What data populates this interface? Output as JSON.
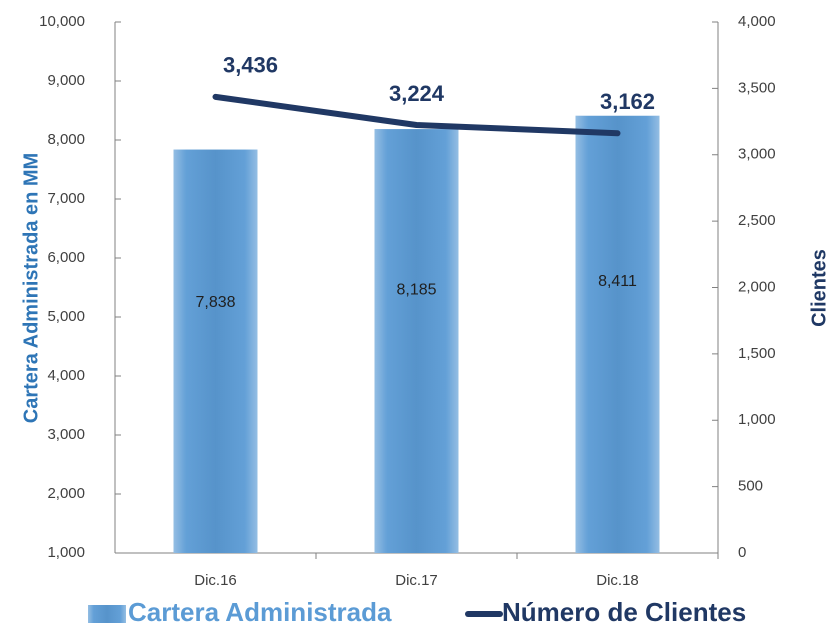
{
  "chart_data": {
    "type": "bar_line",
    "y_label": "Cartera Administrada en MM",
    "y2_label": "Clientes",
    "categories": [
      "Dic.16",
      "Dic.17",
      "Dic.18"
    ],
    "series": [
      {
        "name": "Cartera Administrada",
        "color": "#5b9bd5",
        "values": [
          7838,
          8185,
          8411
        ],
        "value_labels": [
          "7,838",
          "8,185",
          "8,411"
        ]
      },
      {
        "name": "Número de Clientes",
        "color": "#203864",
        "axis": "y2",
        "values": [
          3436,
          3224,
          3162
        ],
        "value_labels": [
          "3,436",
          "3,224",
          "3,162"
        ]
      }
    ],
    "ylim": [
      1000,
      10000
    ],
    "yticks": [
      {
        "value": 1000,
        "label": "1,000"
      },
      {
        "value": 2000,
        "label": "2,000"
      },
      {
        "value": 3000,
        "label": "3,000"
      },
      {
        "value": 4000,
        "label": "4,000"
      },
      {
        "value": 5000,
        "label": "5,000"
      },
      {
        "value": 6000,
        "label": "6,000"
      },
      {
        "value": 7000,
        "label": "7,000"
      },
      {
        "value": 8000,
        "label": "8,000"
      },
      {
        "value": 9000,
        "label": "9,000"
      },
      {
        "value": 10000,
        "label": "10,000"
      }
    ],
    "y2lim": [
      0,
      4000
    ],
    "y2ticks": [
      0,
      500,
      {
        "value": 1000,
        "label": "1,000"
      },
      {
        "value": 1500,
        "label": "1,500"
      },
      {
        "value": 2000,
        "label": "2,000"
      },
      {
        "value": 2500,
        "label": "2,500"
      },
      {
        "value": 3000,
        "label": "3,000"
      },
      {
        "value": 3500,
        "label": "3,500"
      },
      {
        "value": 4000,
        "label": "4,000"
      }
    ],
    "legend": "bottom"
  }
}
